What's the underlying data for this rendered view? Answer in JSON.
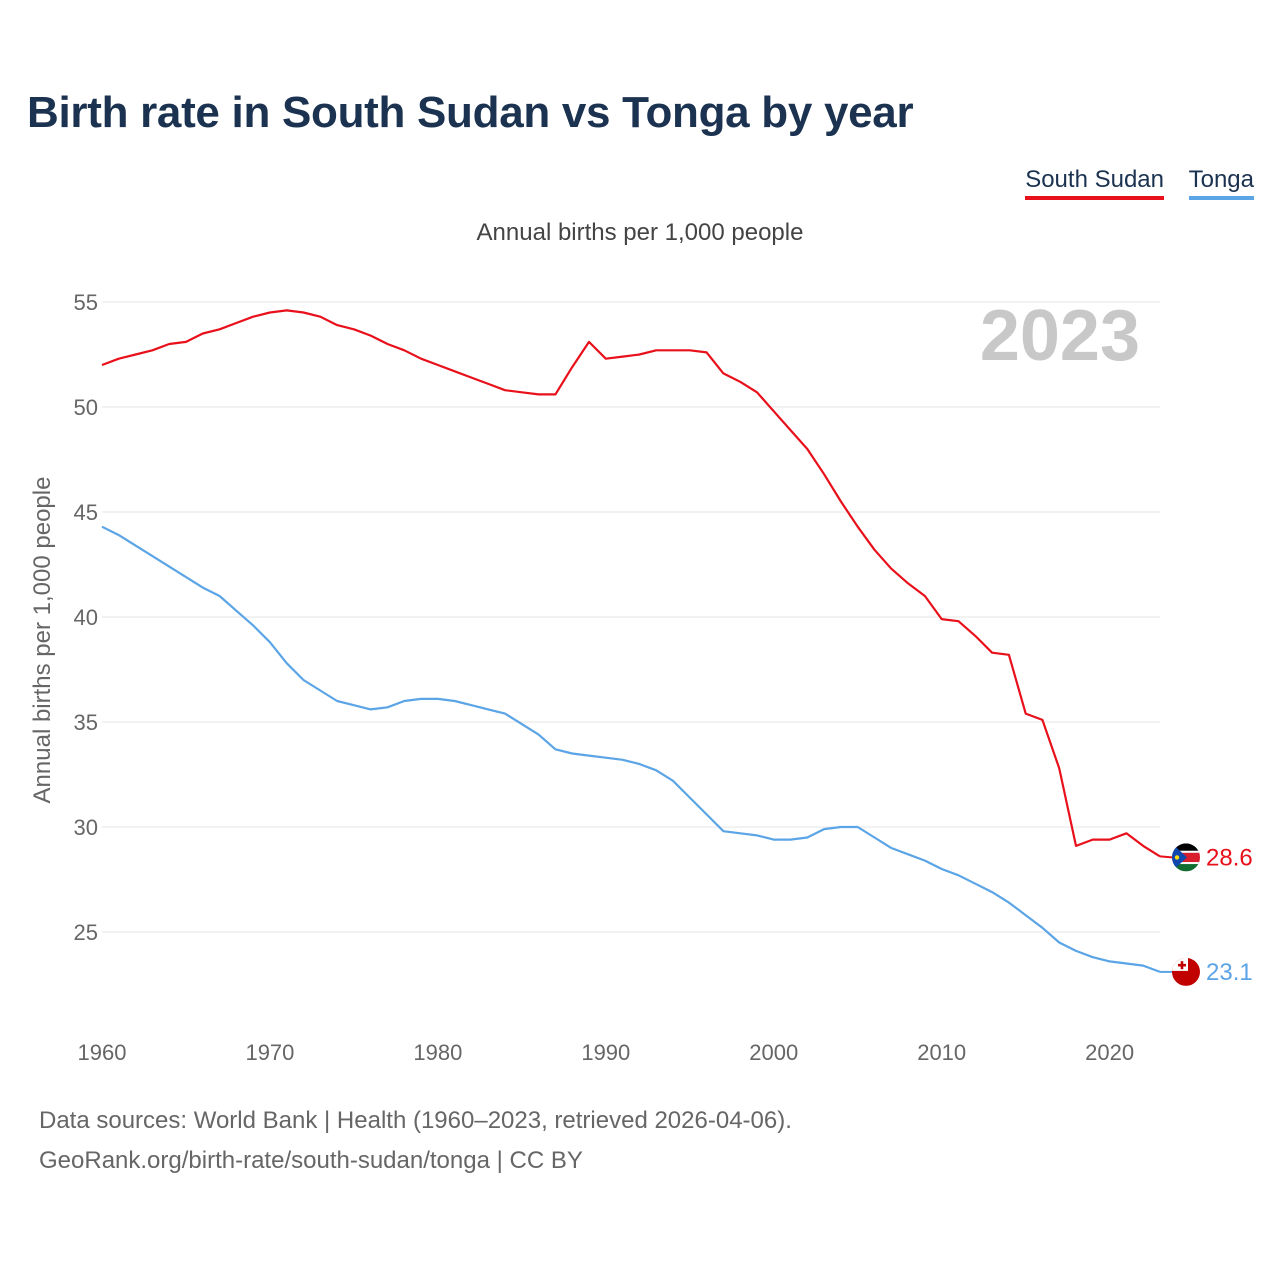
{
  "title": "Birth rate in South Sudan vs Tonga by year",
  "legend": {
    "south_sudan": "South Sudan",
    "tonga": "Tonga"
  },
  "source_line1": "Data sources: World Bank | Health (1960–2023, retrieved 2026-04-06).",
  "source_line2": "GeoRank.org/birth-rate/south-sudan/tonga | CC BY",
  "colors": {
    "south_sudan": "#e8101a",
    "tonga": "#5ba4e6",
    "title": "#1b3250",
    "watermark": "#c8c8c8"
  },
  "chart_data": {
    "type": "line",
    "title": "Annual births per 1,000 people",
    "ylabel": "Annual births per 1,000 people",
    "xlabel": "",
    "watermark_year": "2023",
    "xlim": [
      1960,
      2023
    ],
    "ylim": [
      21,
      56
    ],
    "x_ticks": [
      1960,
      1970,
      1980,
      1990,
      2000,
      2010,
      2020
    ],
    "y_ticks": [
      25,
      30,
      35,
      40,
      45,
      50,
      55
    ],
    "grid": true,
    "x": [
      1960,
      1961,
      1962,
      1963,
      1964,
      1965,
      1966,
      1967,
      1968,
      1969,
      1970,
      1971,
      1972,
      1973,
      1974,
      1975,
      1976,
      1977,
      1978,
      1979,
      1980,
      1981,
      1982,
      1983,
      1984,
      1985,
      1986,
      1987,
      1988,
      1989,
      1990,
      1991,
      1992,
      1993,
      1994,
      1995,
      1996,
      1997,
      1998,
      1999,
      2000,
      2001,
      2002,
      2003,
      2004,
      2005,
      2006,
      2007,
      2008,
      2009,
      2010,
      2011,
      2012,
      2013,
      2014,
      2015,
      2016,
      2017,
      2018,
      2019,
      2020,
      2021,
      2022,
      2023
    ],
    "series": [
      {
        "name": "South Sudan",
        "end_label": "28.6",
        "values": [
          52.0,
          52.3,
          52.5,
          52.7,
          53.0,
          53.1,
          53.5,
          53.7,
          54.0,
          54.3,
          54.5,
          54.6,
          54.5,
          54.3,
          53.9,
          53.7,
          53.4,
          53.0,
          52.7,
          52.3,
          52.0,
          51.7,
          51.4,
          51.1,
          50.8,
          50.7,
          50.6,
          50.6,
          51.9,
          53.1,
          52.3,
          52.4,
          52.5,
          52.7,
          52.7,
          52.7,
          52.6,
          51.6,
          51.2,
          50.7,
          49.8,
          48.9,
          48.0,
          46.8,
          45.5,
          44.3,
          43.2,
          42.3,
          41.6,
          41.0,
          39.9,
          39.8,
          39.1,
          38.3,
          38.2,
          35.4,
          35.1,
          32.8,
          29.1,
          29.4,
          29.4,
          29.7,
          29.1,
          28.6
        ]
      },
      {
        "name": "Tonga",
        "end_label": "23.1",
        "values": [
          44.3,
          43.9,
          43.4,
          42.9,
          42.4,
          41.9,
          41.4,
          41.0,
          40.3,
          39.6,
          38.8,
          37.8,
          37.0,
          36.5,
          36.0,
          35.8,
          35.6,
          35.7,
          36.0,
          36.1,
          36.1,
          36.0,
          35.8,
          35.6,
          35.4,
          34.9,
          34.4,
          33.7,
          33.5,
          33.4,
          33.3,
          33.2,
          33.0,
          32.7,
          32.2,
          31.4,
          30.6,
          29.8,
          29.7,
          29.6,
          29.4,
          29.4,
          29.5,
          29.9,
          30.0,
          30.0,
          29.5,
          29.0,
          28.7,
          28.4,
          28.0,
          27.7,
          27.3,
          26.9,
          26.4,
          25.8,
          25.2,
          24.5,
          24.1,
          23.8,
          23.6,
          23.5,
          23.4,
          23.1
        ]
      }
    ]
  }
}
